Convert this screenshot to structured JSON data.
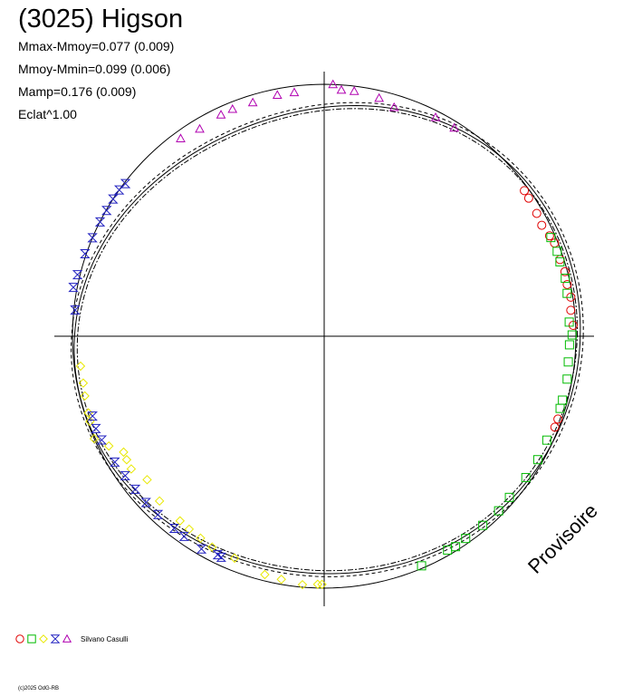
{
  "chart_data": {
    "type": "scatter",
    "projection": "polar",
    "title": "(3025) Higson",
    "stats": [
      "Mmax-Mmoy=0.077 (0.009)",
      "Mmoy-Mmin=0.099 (0.006)",
      "Mamp=0.176 (0.009)",
      "Eclat^1.00"
    ],
    "axis_range_data_units": [
      -1,
      1
    ],
    "axes_through_origin": true,
    "grid": false,
    "legend_position": "bottom-left",
    "legend": {
      "author": "Silvano Casulli",
      "symbols": [
        {
          "shape": "circle",
          "color": "#e00000"
        },
        {
          "shape": "square",
          "color": "#00bb00"
        },
        {
          "shape": "diamond",
          "color": "#e8e800"
        },
        {
          "shape": "hourglass",
          "color": "#2020c0"
        },
        {
          "shape": "triangle",
          "color": "#b000b0"
        }
      ]
    },
    "model_curve": {
      "description": "model lightcurve radius by phase angle",
      "center_radius": 1.0
    },
    "series": [
      {
        "symbol": 0,
        "points": [
          [
            36,
            0.983
          ],
          [
            34,
            0.98
          ],
          [
            30,
            0.975
          ],
          [
            27,
            0.97
          ],
          [
            24,
            0.98
          ],
          [
            22,
            0.987
          ],
          [
            18,
            0.985
          ],
          [
            15,
            0.99
          ],
          [
            12,
            0.987
          ],
          [
            9,
            0.992
          ],
          [
            6,
            0.985
          ],
          [
            2.5,
            0.99
          ],
          [
            -19.5,
            0.985
          ],
          [
            -21.5,
            0.985
          ]
        ]
      },
      {
        "symbol": 1,
        "points": [
          [
            23.5,
            0.982
          ],
          [
            20,
            0.985
          ],
          [
            17.5,
            0.982
          ],
          [
            13.5,
            0.985
          ],
          [
            10,
            0.98
          ],
          [
            3.3,
            0.975
          ],
          [
            0.3,
            0.985
          ],
          [
            -2,
            0.975
          ],
          [
            -6,
            0.975
          ],
          [
            -10,
            0.98
          ],
          [
            -15,
            0.98
          ],
          [
            -17,
            0.98
          ],
          [
            -25,
            0.976
          ],
          [
            -30,
            0.98
          ],
          [
            -35,
            0.978
          ],
          [
            -41,
            0.975
          ],
          [
            -45,
            0.98
          ],
          [
            -50,
            0.98
          ],
          [
            -55,
            0.98
          ],
          [
            -58,
            0.985
          ],
          [
            -60,
            0.98
          ],
          [
            -67,
            0.99
          ]
        ]
      },
      {
        "symbol": 2,
        "points": [
          [
            -90.5,
            0.985
          ],
          [
            -91.5,
            0.985
          ],
          [
            -95,
            0.99
          ],
          [
            -100,
            0.98
          ],
          [
            -104,
            0.975
          ],
          [
            -112,
            0.95
          ],
          [
            -118,
            0.948
          ],
          [
            -121.5,
            0.94
          ],
          [
            -125,
            0.935
          ],
          [
            -128,
            0.93
          ],
          [
            -135,
            0.925
          ],
          [
            -141,
            0.905
          ],
          [
            -145.5,
            0.93
          ],
          [
            -148,
            0.925
          ],
          [
            -150,
            0.92
          ],
          [
            -153,
            0.96
          ],
          [
            -156,
            1.0
          ],
          [
            -160,
            0.99
          ],
          [
            -162,
            0.985
          ],
          [
            -166,
            0.98
          ],
          [
            -169,
            0.975
          ],
          [
            -173,
            0.975
          ]
        ]
      },
      {
        "symbol": 3,
        "points": [
          [
            -115,
            0.968
          ],
          [
            -116,
            0.965
          ],
          [
            -120,
            0.975
          ],
          [
            -125,
            0.97
          ],
          [
            -128,
            0.968
          ],
          [
            -133,
            0.968
          ],
          [
            -137,
            0.968
          ],
          [
            -141,
            0.965
          ],
          [
            -145,
            0.965
          ],
          [
            -149,
            0.97
          ],
          [
            -155,
            0.975
          ],
          [
            -158,
            0.978
          ],
          [
            -161,
            0.973
          ],
          [
            142.5,
            0.995
          ],
          [
            144.5,
            1.0
          ],
          [
            147,
            1.0
          ],
          [
            150,
            0.998
          ],
          [
            153,
            0.999
          ],
          [
            157,
            1.0
          ],
          [
            161,
            1.005
          ],
          [
            166,
            1.01
          ],
          [
            169,
            1.015
          ],
          [
            174,
            0.995
          ]
        ]
      },
      {
        "symbol": 4,
        "points": [
          [
            88,
            1.0
          ],
          [
            86,
            0.98
          ],
          [
            83,
            0.98
          ],
          [
            77,
            0.97
          ],
          [
            73,
            0.95
          ],
          [
            63,
            0.975
          ],
          [
            58,
            0.975
          ],
          [
            97,
            0.975
          ],
          [
            101,
            0.975
          ],
          [
            107,
            0.97
          ],
          [
            112,
            0.972
          ],
          [
            115,
            0.97
          ],
          [
            121,
            0.96
          ],
          [
            126,
            0.97
          ]
        ]
      }
    ],
    "watermark": "Provisoire",
    "copyright": "(c)2025 OdG-RB"
  }
}
